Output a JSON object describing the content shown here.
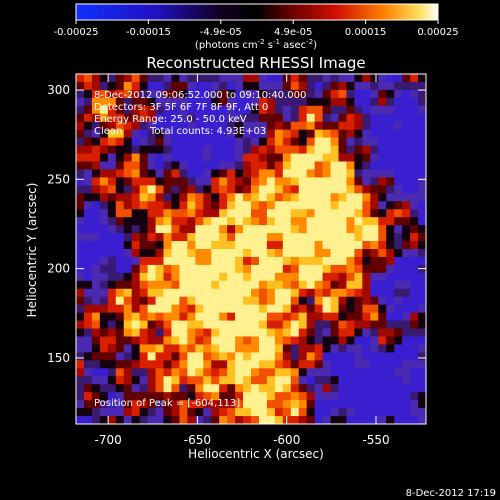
{
  "colorbar": {
    "ticks": [
      "-0.00025",
      "-0.00015",
      "-4.9e-05",
      "4.9e-05",
      "0.00015",
      "0.00025"
    ],
    "units_prefix": "(photons cm",
    "units_exp1": "-2",
    "units_mid": " s",
    "units_exp2": "-1",
    "units_mid2": " asec",
    "units_exp3": "-2",
    "units_suffix": ")",
    "colors": [
      "#0000ff",
      "#1010b0",
      "#000000",
      "#c00000",
      "#ff8000",
      "#ffffff"
    ]
  },
  "title": "Reconstructed RHESSI Image",
  "info": {
    "time": "8-Dec-2012 09:06:52.000 to 09:10:40.000",
    "detectors": "Detectors: 3F 5F 6F 7F 8F 9F, Att 0",
    "energy": "Energy Range: 25.0 - 50.0 keV",
    "method": "Clean",
    "counts": "Total counts: 4.93E+03",
    "peak": "Position of Peak = [-604,113]"
  },
  "axes": {
    "xlabel": "Heliocentric X (arcsec)",
    "ylabel": "Heliocentric Y (arcsec)",
    "xticks": [
      "-700",
      "-650",
      "-600",
      "-550"
    ],
    "yticks": [
      "300",
      "250",
      "200",
      "150"
    ],
    "xlim": [
      -718,
      -522
    ],
    "ylim": [
      113,
      309
    ]
  },
  "footer": {
    "timestamp": "8-Dec-2012 17:19"
  }
}
